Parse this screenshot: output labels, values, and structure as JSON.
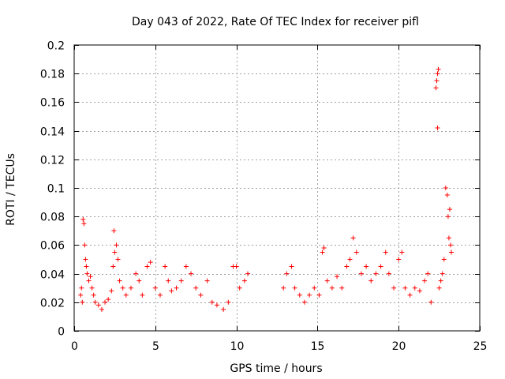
{
  "chart_data": {
    "type": "scatter",
    "title": "Day 043 of 2022, Rate Of TEC Index for receiver pifl",
    "xlabel": "GPS time / hours",
    "ylabel": "ROTI / TECUs",
    "xlim": [
      0,
      25
    ],
    "ylim": [
      0,
      0.2
    ],
    "xticks": [
      0,
      5,
      10,
      15,
      20,
      25
    ],
    "xtick_labels": [
      "0",
      "5",
      "10",
      "15",
      "20",
      "25"
    ],
    "yticks": [
      0,
      0.02,
      0.04,
      0.06,
      0.08,
      0.1,
      0.12,
      0.14,
      0.16,
      0.18,
      0.2
    ],
    "ytick_labels": [
      "0",
      "0.02",
      "0.04",
      "0.06",
      "0.08",
      "0.1",
      "0.12",
      "0.14",
      "0.16",
      "0.18",
      "0.2"
    ],
    "grid": true,
    "marker": "+",
    "marker_color": "#ff0000",
    "series": [
      {
        "name": "ROTI",
        "points": [
          [
            0.4,
            0.025
          ],
          [
            0.45,
            0.03
          ],
          [
            0.5,
            0.02
          ],
          [
            0.55,
            0.078
          ],
          [
            0.6,
            0.075
          ],
          [
            0.65,
            0.06
          ],
          [
            0.7,
            0.05
          ],
          [
            0.75,
            0.045
          ],
          [
            0.8,
            0.04
          ],
          [
            0.9,
            0.035
          ],
          [
            1.0,
            0.038
          ],
          [
            1.1,
            0.03
          ],
          [
            1.2,
            0.025
          ],
          [
            1.3,
            0.02
          ],
          [
            1.5,
            0.018
          ],
          [
            1.7,
            0.015
          ],
          [
            1.9,
            0.02
          ],
          [
            2.1,
            0.022
          ],
          [
            2.3,
            0.028
          ],
          [
            2.4,
            0.045
          ],
          [
            2.45,
            0.07
          ],
          [
            2.5,
            0.055
          ],
          [
            2.6,
            0.06
          ],
          [
            2.7,
            0.05
          ],
          [
            2.8,
            0.035
          ],
          [
            3.0,
            0.03
          ],
          [
            3.2,
            0.025
          ],
          [
            3.5,
            0.03
          ],
          [
            3.8,
            0.04
          ],
          [
            4.0,
            0.035
          ],
          [
            4.2,
            0.025
          ],
          [
            4.5,
            0.045
          ],
          [
            4.7,
            0.048
          ],
          [
            5.0,
            0.03
          ],
          [
            5.3,
            0.025
          ],
          [
            5.6,
            0.045
          ],
          [
            5.8,
            0.035
          ],
          [
            6.0,
            0.028
          ],
          [
            6.3,
            0.03
          ],
          [
            6.6,
            0.035
          ],
          [
            6.9,
            0.045
          ],
          [
            7.2,
            0.04
          ],
          [
            7.5,
            0.03
          ],
          [
            7.8,
            0.025
          ],
          [
            8.2,
            0.035
          ],
          [
            8.5,
            0.02
          ],
          [
            8.8,
            0.018
          ],
          [
            9.2,
            0.015
          ],
          [
            9.5,
            0.02
          ],
          [
            9.8,
            0.045
          ],
          [
            10.0,
            0.045
          ],
          [
            10.2,
            0.03
          ],
          [
            10.5,
            0.035
          ],
          [
            10.7,
            0.04
          ],
          [
            12.9,
            0.03
          ],
          [
            13.1,
            0.04
          ],
          [
            13.4,
            0.045
          ],
          [
            13.6,
            0.03
          ],
          [
            13.9,
            0.025
          ],
          [
            14.2,
            0.02
          ],
          [
            14.5,
            0.025
          ],
          [
            14.8,
            0.03
          ],
          [
            15.1,
            0.025
          ],
          [
            15.3,
            0.055
          ],
          [
            15.4,
            0.058
          ],
          [
            15.6,
            0.035
          ],
          [
            15.9,
            0.03
          ],
          [
            16.2,
            0.038
          ],
          [
            16.5,
            0.03
          ],
          [
            16.8,
            0.045
          ],
          [
            17.0,
            0.05
          ],
          [
            17.2,
            0.065
          ],
          [
            17.4,
            0.055
          ],
          [
            17.7,
            0.04
          ],
          [
            18.0,
            0.045
          ],
          [
            18.3,
            0.035
          ],
          [
            18.6,
            0.04
          ],
          [
            18.9,
            0.045
          ],
          [
            19.2,
            0.055
          ],
          [
            19.4,
            0.04
          ],
          [
            19.7,
            0.03
          ],
          [
            20.0,
            0.05
          ],
          [
            20.2,
            0.055
          ],
          [
            20.4,
            0.03
          ],
          [
            20.7,
            0.025
          ],
          [
            21.0,
            0.03
          ],
          [
            21.3,
            0.028
          ],
          [
            21.6,
            0.035
          ],
          [
            21.8,
            0.04
          ],
          [
            22.0,
            0.02
          ],
          [
            22.3,
            0.17
          ],
          [
            22.35,
            0.175
          ],
          [
            22.4,
            0.18
          ],
          [
            22.45,
            0.183
          ],
          [
            22.4,
            0.142
          ],
          [
            22.5,
            0.03
          ],
          [
            22.6,
            0.035
          ],
          [
            22.7,
            0.04
          ],
          [
            22.8,
            0.05
          ],
          [
            22.9,
            0.1
          ],
          [
            23.0,
            0.095
          ],
          [
            23.05,
            0.08
          ],
          [
            23.1,
            0.065
          ],
          [
            23.15,
            0.085
          ],
          [
            23.2,
            0.06
          ],
          [
            23.25,
            0.055
          ]
        ]
      }
    ]
  }
}
